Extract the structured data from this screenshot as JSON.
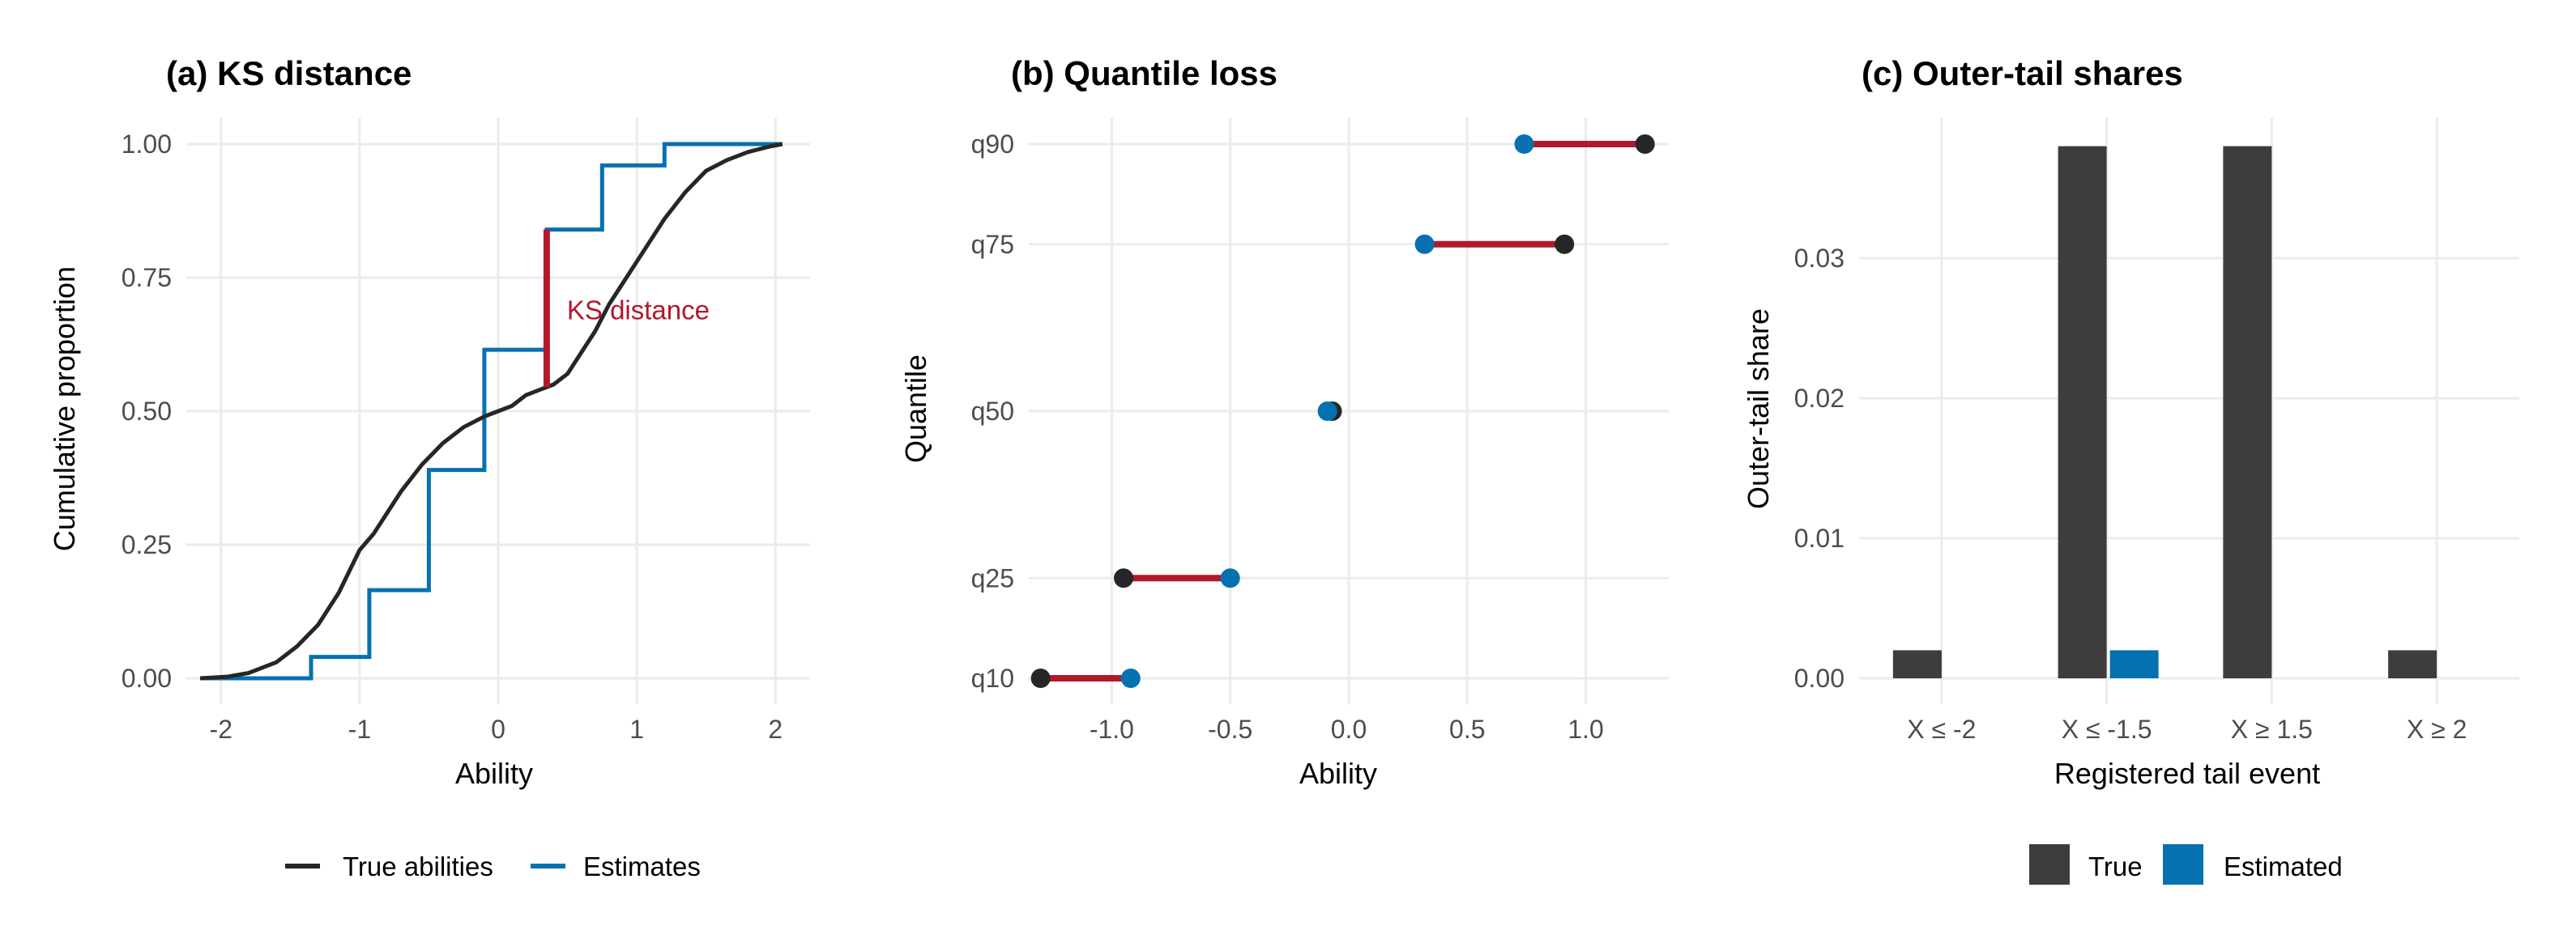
{
  "colors": {
    "true": "#262626",
    "estimate": "#0571b0",
    "accent": "#b2182b",
    "bar_true": "#3d3d3d"
  },
  "chart_data": [
    {
      "type": "line",
      "title": "(a) KS distance",
      "xlabel": "Ability",
      "ylabel": "Cumulative proportion",
      "xlim": [
        -2.25,
        2.25
      ],
      "ylim": [
        0,
        1
      ],
      "xticks": [
        "-2",
        "-1",
        "0",
        "1",
        "2"
      ],
      "xtick_values": [
        -2,
        -1,
        0,
        1,
        2
      ],
      "yticks": [
        "0.00",
        "0.25",
        "0.50",
        "0.75",
        "1.00"
      ],
      "ytick_values": [
        0,
        0.25,
        0.5,
        0.75,
        1.0
      ],
      "grid": true,
      "legend_position": "bottom",
      "series": [
        {
          "name": "True abilities",
          "x": [
            -2.15,
            -1.95,
            -1.8,
            -1.6,
            -1.45,
            -1.3,
            -1.15,
            -1.0,
            -0.9,
            -0.8,
            -0.7,
            -0.55,
            -0.4,
            -0.25,
            -0.1,
            0.0,
            0.1,
            0.2,
            0.3,
            0.4,
            0.5,
            0.6,
            0.7,
            0.8,
            0.9,
            1.0,
            1.1,
            1.2,
            1.35,
            1.5,
            1.65,
            1.8,
            1.95,
            2.05
          ],
          "y": [
            0.0,
            0.003,
            0.01,
            0.03,
            0.06,
            0.1,
            0.16,
            0.24,
            0.27,
            0.31,
            0.35,
            0.4,
            0.44,
            0.47,
            0.49,
            0.5,
            0.51,
            0.53,
            0.54,
            0.55,
            0.57,
            0.61,
            0.65,
            0.7,
            0.74,
            0.78,
            0.82,
            0.86,
            0.91,
            0.95,
            0.97,
            0.985,
            0.995,
            1.0
          ]
        },
        {
          "name": "Estimates",
          "type": "step",
          "x": [
            -2.15,
            -1.35,
            -1.35,
            -0.93,
            -0.93,
            -0.5,
            -0.5,
            -0.1,
            -0.1,
            0.35,
            0.35,
            0.75,
            0.75,
            1.2,
            1.2,
            2.05
          ],
          "y": [
            0.0,
            0.0,
            0.04,
            0.04,
            0.165,
            0.165,
            0.39,
            0.39,
            0.615,
            0.615,
            0.84,
            0.84,
            0.96,
            0.96,
            1.0,
            1.0
          ]
        }
      ],
      "ks_segment": {
        "x": 0.35,
        "y_from": 0.545,
        "y_to": 0.84,
        "label": "KS distance"
      }
    },
    {
      "type": "scatter",
      "title": "(b) Quantile loss",
      "xlabel": "Ability",
      "ylabel": "Quantile",
      "xlim": [
        -1.35,
        1.35
      ],
      "xticks": [
        "-1.0",
        "-0.5",
        "0.0",
        "0.5",
        "1.0"
      ],
      "xtick_values": [
        -1.0,
        -0.5,
        0.0,
        0.5,
        1.0
      ],
      "y_categories": [
        "q10",
        "q25",
        "q50",
        "q75",
        "q90"
      ],
      "y_positions": [
        0.1,
        0.25,
        0.5,
        0.75,
        0.9
      ],
      "grid": true,
      "true_values": [
        -1.3,
        -0.95,
        -0.07,
        0.91,
        1.25
      ],
      "estimate_values": [
        -0.92,
        -0.5,
        -0.09,
        0.32,
        0.74
      ]
    },
    {
      "type": "bar",
      "title": "(c) Outer-tail shares",
      "xlabel": "Registered tail event",
      "ylabel": "Outer-tail share",
      "categories": [
        "X ≤ -2",
        "X ≤ -1.5",
        "X ≥ 1.5",
        "X ≥ 2"
      ],
      "ylim": [
        0,
        0.04
      ],
      "yticks": [
        "0.00",
        "0.01",
        "0.02",
        "0.03"
      ],
      "ytick_values": [
        0,
        0.01,
        0.02,
        0.03
      ],
      "grid": true,
      "legend_position": "bottom",
      "series": [
        {
          "name": "True",
          "values": [
            0.002,
            0.038,
            0.038,
            0.002
          ]
        },
        {
          "name": "Estimated",
          "values": [
            0.0,
            0.002,
            0.0,
            0.0
          ]
        }
      ]
    }
  ]
}
